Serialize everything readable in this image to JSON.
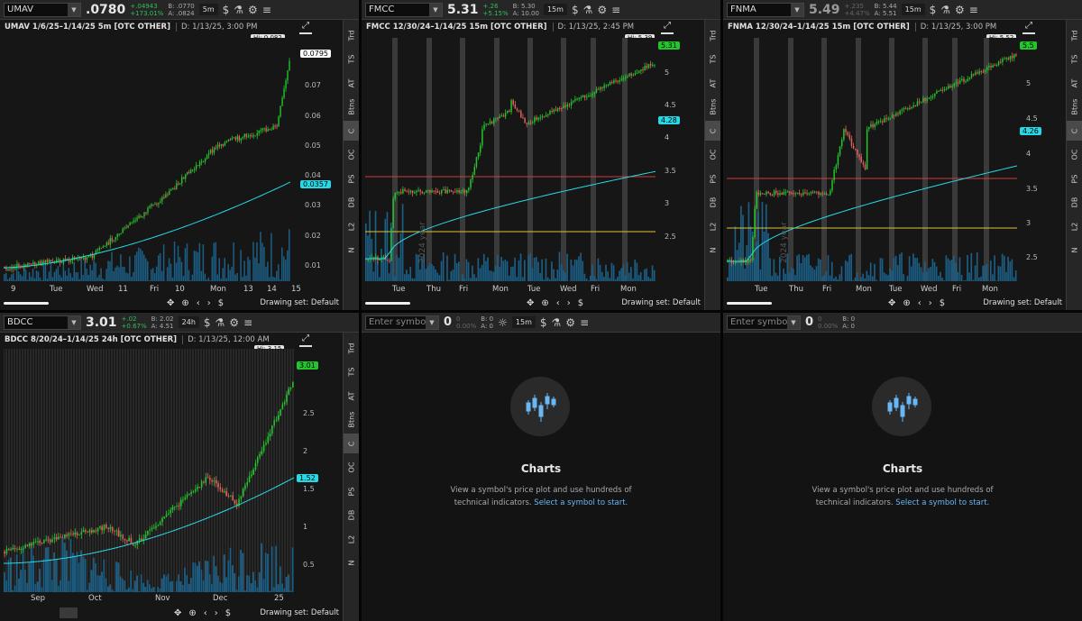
{
  "panels": [
    {
      "symbol": "UMAV",
      "last": ".0780",
      "change": "+.04943",
      "change_pct": "+173.01%",
      "bid": "B: .0770",
      "ask": "A: .0824",
      "timeframe": "5m",
      "title": "UMAV 1/6/25–1/14/25 5m [OTC OTHER]",
      "data_line": "D: 1/13/25, 3:00 PM",
      "hi_label": "Hi: 0.082",
      "price_label": "0.0795",
      "vwap_label": "0.0357",
      "y_ticks": [
        "0.07",
        "0.06",
        "0.05",
        "0.04",
        "0.03",
        "0.02",
        "0.01"
      ],
      "x_ticks": [
        "9",
        "Tue",
        "Wed",
        "11",
        "Fri",
        "10",
        "Mon",
        "13",
        "14",
        "15"
      ],
      "drawing_set": "Drawing set: Default"
    },
    {
      "symbol": "FMCC",
      "last": "5.31",
      "change": "+.26",
      "change_pct": "+5.15%",
      "bid": "B: 5.30",
      "ask": "A: 10.00",
      "timeframe": "15m",
      "title": "FMCC 12/30/24–1/14/25 15m [OTC OTHER]",
      "data_line": "D: 1/13/25, 2:45 PM",
      "hi_label": "Hi: 5.39",
      "price_label": "5.31",
      "vwap_label": "4.28",
      "y_ticks": [
        "5",
        "4.5",
        "4",
        "3.5",
        "3",
        "2.5"
      ],
      "year_label": "2024 year",
      "x_ticks": [
        "Tue",
        "Thu",
        "Fri",
        "Mon",
        "Tue",
        "Wed",
        "Fri",
        "Mon"
      ],
      "drawing_set": "Drawing set: Default"
    },
    {
      "symbol": "FNMA",
      "last": "5.49",
      "change": "+.235",
      "change_pct": "+4.47%",
      "bid": "B: 5.44",
      "ask": "A: 5.51",
      "timeframe": "15m",
      "title": "FNMA 12/30/24–1/14/25 15m [OTC OTHER]",
      "data_line": "D: 1/13/25, 3:00 PM",
      "hi_label": "Hi: 5.52",
      "price_label": "5.5",
      "vwap_label": "4.26",
      "y_ticks": [
        "5",
        "4.5",
        "4",
        "3.5",
        "3",
        "2.5"
      ],
      "year_label": "2024 year",
      "x_ticks": [
        "Tue",
        "Thu",
        "Fri",
        "Mon",
        "Tue",
        "Wed",
        "Fri",
        "Mon"
      ],
      "drawing_set": "Drawing set: Default"
    },
    {
      "symbol": "BDCC",
      "last": "3.01",
      "change": "+.02",
      "change_pct": "+0.67%",
      "bid": "B: 2.02",
      "ask": "A: 4.51",
      "timeframe": "24h",
      "title": "BDCC 8/20/24–1/14/25 24h [OTC OTHER]",
      "data_line": "D: 1/13/25, 12:00 AM",
      "hi_label": "Hi: 3.15",
      "price_label": "3.01",
      "vwap_label": "1.52",
      "y_ticks": [
        "2.5",
        "2",
        "1.5",
        "1",
        "0.5"
      ],
      "x_ticks": [
        "Sep",
        "Oct",
        "Nov",
        "Dec",
        "25"
      ],
      "drawing_set": "Drawing set: Default"
    }
  ],
  "side_tabs": [
    "Trd",
    "TS",
    "AT",
    "Btns",
    "C",
    "OC",
    "PS",
    "DB",
    "L2",
    "N"
  ],
  "empty": {
    "placeholder": "Enter symbol",
    "last": "0",
    "change": "0",
    "change_pct": "0.00%",
    "bid": "B: 0",
    "ask": "A: 0",
    "timeframe": "15m",
    "title": "Charts",
    "text_1": "View a symbol's price plot and use hundreds of",
    "text_2": "technical indicators.",
    "link": "Select a symbol to start."
  },
  "colors": {
    "up": "#22c52b",
    "down": "#e0605c",
    "vwap": "#27d9e6",
    "volume": "#1c5f86",
    "support_red": "#d23a3a",
    "support_yellow": "#d9c43a"
  }
}
